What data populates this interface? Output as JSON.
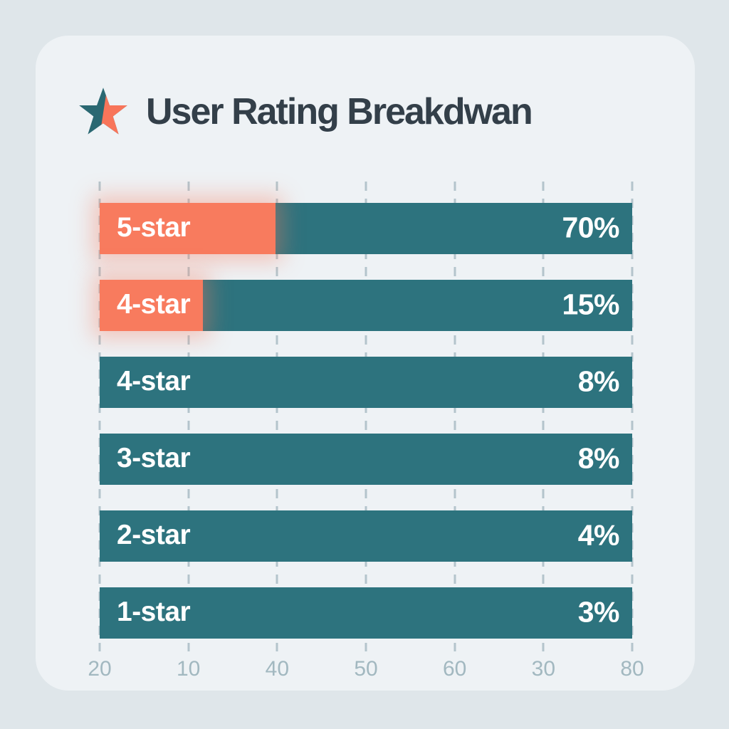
{
  "header": {
    "title": "User Rating Breakdwan",
    "icon": "star-icon"
  },
  "colors": {
    "page_background": "#dfe6ea",
    "card_background": "#eef2f5",
    "bar_teal": "#2d737e",
    "accent_coral": "#f87b5e",
    "star_teal": "#2a6872",
    "star_coral": "#f8755a",
    "title_text": "#333f49",
    "bar_text": "#ffffff",
    "axis_label": "#a2b8c0",
    "gridline": "#94acb6"
  },
  "chart_data": {
    "type": "bar",
    "orientation": "horizontal",
    "title": "User Rating Breakdwan",
    "categories": [
      "5-star",
      "4-star",
      "4-star",
      "3-star",
      "2-star",
      "1-star"
    ],
    "values": [
      70,
      15,
      8,
      8,
      4,
      3
    ],
    "bars": [
      {
        "label": "5-star",
        "value": 70,
        "value_label": "70%",
        "bar_width_pct": 100,
        "accent_width_pct": 33
      },
      {
        "label": "4-star",
        "value": 15,
        "value_label": "15%",
        "bar_width_pct": 100,
        "accent_width_pct": 19.4
      },
      {
        "label": "4-star",
        "value": 8,
        "value_label": "8%",
        "bar_width_pct": 100,
        "accent_width_pct": 0
      },
      {
        "label": "3-star",
        "value": 8,
        "value_label": "8%",
        "bar_width_pct": 100,
        "accent_width_pct": 0
      },
      {
        "label": "2-star",
        "value": 4,
        "value_label": "4%",
        "bar_width_pct": 100,
        "accent_width_pct": 0
      },
      {
        "label": "1-star",
        "value": 3,
        "value_label": "3%",
        "bar_width_pct": 100,
        "accent_width_pct": 0
      }
    ],
    "x_tick_labels": [
      "20",
      "10",
      "40",
      "50",
      "60",
      "30",
      "80"
    ],
    "xlabel": "",
    "ylabel": "",
    "legend": false,
    "gridlines": "vertical-dashed"
  }
}
